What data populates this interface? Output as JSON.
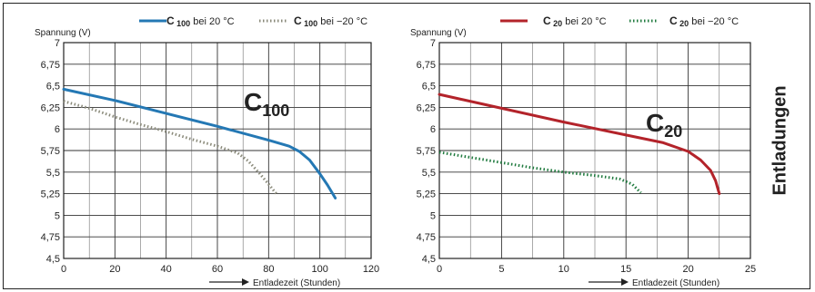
{
  "side_title": "Entladungen",
  "chart_data": [
    {
      "type": "line",
      "title": "C100",
      "ylabel": "Spannung (V)",
      "xlabel": "Entladezeit (Stunden)",
      "xlim": [
        0,
        120
      ],
      "ylim": [
        4.5,
        7
      ],
      "x_ticks": [
        0,
        20,
        40,
        60,
        80,
        100,
        120
      ],
      "x_tick_labels": [
        "0",
        "20",
        "40",
        "60",
        "80",
        "100",
        "120"
      ],
      "y_ticks": [
        4.5,
        4.75,
        5,
        5.25,
        5.5,
        5.75,
        6,
        6.25,
        6.5,
        6.75,
        7
      ],
      "y_tick_labels": [
        "4,5",
        "4,75",
        "5",
        "5,25",
        "5,5",
        "5,75",
        "6",
        "6,25",
        "6,5",
        "6,75",
        "7"
      ],
      "grid": true,
      "legend_position": "top",
      "series": [
        {
          "name": "C 100 bei 20 °C",
          "legend_main": "C",
          "legend_sub": "100",
          "legend_rest": "bei 20 °C",
          "color": "#2478b4",
          "style": "solid",
          "x": [
            0,
            20,
            40,
            60,
            80,
            88,
            92,
            96,
            100,
            103,
            106
          ],
          "y": [
            6.46,
            6.33,
            6.18,
            6.03,
            5.87,
            5.8,
            5.74,
            5.64,
            5.48,
            5.35,
            5.2
          ]
        },
        {
          "name": "C 100 bei −20 °C",
          "legend_main": "C",
          "legend_sub": "100",
          "legend_rest": "bei −20 °C",
          "color": "#8a8a7a",
          "style": "dotted",
          "x": [
            0,
            10,
            20,
            30,
            40,
            50,
            60,
            68,
            72,
            76,
            80,
            83
          ],
          "y": [
            6.32,
            6.24,
            6.14,
            6.05,
            5.97,
            5.88,
            5.8,
            5.72,
            5.63,
            5.5,
            5.36,
            5.25
          ]
        }
      ]
    },
    {
      "type": "line",
      "title": "C20",
      "ylabel": "Spannung (V)",
      "xlabel": "Entladezeit (Stunden)",
      "xlim": [
        0,
        25
      ],
      "ylim": [
        4.5,
        7
      ],
      "x_ticks": [
        0,
        5,
        10,
        15,
        20,
        25
      ],
      "x_tick_labels": [
        "0",
        "5",
        "10",
        "15",
        "20",
        "25"
      ],
      "y_ticks": [
        4.5,
        4.75,
        5,
        5.25,
        5.5,
        5.75,
        6,
        6.25,
        6.5,
        6.75,
        7
      ],
      "y_tick_labels": [
        "4,5",
        "4,75",
        "5",
        "5,25",
        "5,5",
        "5,75",
        "6",
        "6,25",
        "6,5",
        "6,75",
        "7"
      ],
      "grid": true,
      "legend_position": "top",
      "series": [
        {
          "name": "C 20 bei 20 °C",
          "legend_main": "C",
          "legend_sub": "20",
          "legend_rest": "bei 20 °C",
          "color": "#b3232a",
          "style": "solid",
          "x": [
            0,
            5,
            10,
            15,
            18,
            20,
            21,
            21.8,
            22.2,
            22.4,
            22.5
          ],
          "y": [
            6.4,
            6.24,
            6.08,
            5.93,
            5.84,
            5.74,
            5.64,
            5.52,
            5.4,
            5.3,
            5.25
          ]
        },
        {
          "name": "C 20 bei −20 °C",
          "legend_main": "C",
          "legend_sub": "20",
          "legend_rest": "bei −20 °C",
          "color": "#1f7a3e",
          "style": "dotted",
          "x": [
            0,
            2.5,
            5,
            7.5,
            10,
            12.5,
            14.5,
            15.5,
            16.2
          ],
          "y": [
            5.73,
            5.67,
            5.61,
            5.55,
            5.5,
            5.46,
            5.42,
            5.36,
            5.26
          ]
        }
      ]
    }
  ]
}
